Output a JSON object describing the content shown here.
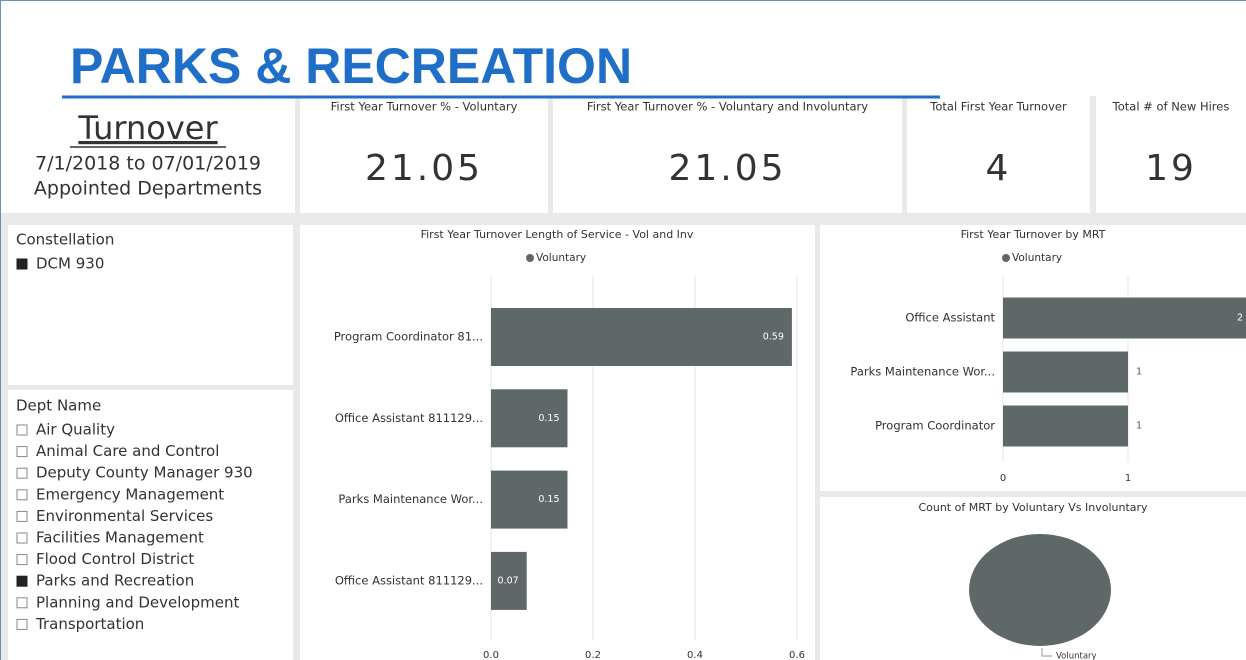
{
  "header": {
    "title": "PARKS & RECREATION",
    "subtitle": "Turnover",
    "date_range": "7/1/2018 to 07/01/2019",
    "scope": "Appointed Departments"
  },
  "kpis": [
    {
      "label": "First Year Turnover % - Voluntary",
      "value": "21.05"
    },
    {
      "label": "First Year Turnover % - Voluntary and Involuntary",
      "value": "21.05"
    },
    {
      "label": "Total First Year Turnover",
      "value": "4"
    },
    {
      "label": "Total # of New Hires",
      "value": "19"
    }
  ],
  "slicers": [
    {
      "title": "Constellation",
      "items": [
        {
          "label": "DCM 930",
          "checked": true
        }
      ]
    },
    {
      "title": "Dept Name",
      "items": [
        {
          "label": "Air Quality",
          "checked": false
        },
        {
          "label": "Animal Care and Control",
          "checked": false
        },
        {
          "label": "Deputy County Manager 930",
          "checked": false
        },
        {
          "label": "Emergency Management",
          "checked": false
        },
        {
          "label": "Environmental Services",
          "checked": false
        },
        {
          "label": "Facilities Management",
          "checked": false
        },
        {
          "label": "Flood Control District",
          "checked": false
        },
        {
          "label": "Parks and Recreation",
          "checked": true
        },
        {
          "label": "Planning and Development",
          "checked": false
        },
        {
          "label": "Transportation",
          "checked": false
        }
      ]
    }
  ],
  "chart_data": [
    {
      "type": "hbar",
      "title": "First Year Turnover Length of Service - Vol and Inv",
      "categories": [
        "Program Coordinator 81...",
        "Office Assistant 811129...",
        "Parks Maintenance Wor...",
        "Office Assistant 811129..."
      ],
      "series": [
        {
          "name": "Voluntary",
          "color": "#5f6869",
          "values": [
            0.59,
            0.15,
            0.15,
            0.07
          ]
        }
      ],
      "xlim": [
        0,
        0.6
      ],
      "xticks": [
        {
          "value": 0,
          "label": "0.0"
        },
        0.2,
        0.4,
        0.6
      ],
      "grid": true
    },
    {
      "type": "hbar",
      "title": "First Year Turnover by MRT",
      "categories": [
        "Office Assistant",
        "Parks Maintenance Wor...",
        "Program Coordinator"
      ],
      "series": [
        {
          "name": "Voluntary",
          "color": "#5f6869",
          "values": [
            2,
            1,
            1
          ]
        }
      ],
      "xlim": [
        0,
        2
      ],
      "xticks": [
        0,
        1
      ],
      "grid": true
    },
    {
      "type": "pie",
      "title": "Count of MRT by Voluntary Vs Involuntary",
      "categories": [
        "Voluntary"
      ],
      "values": [
        4
      ],
      "colors": [
        "#5f6869"
      ]
    }
  ]
}
